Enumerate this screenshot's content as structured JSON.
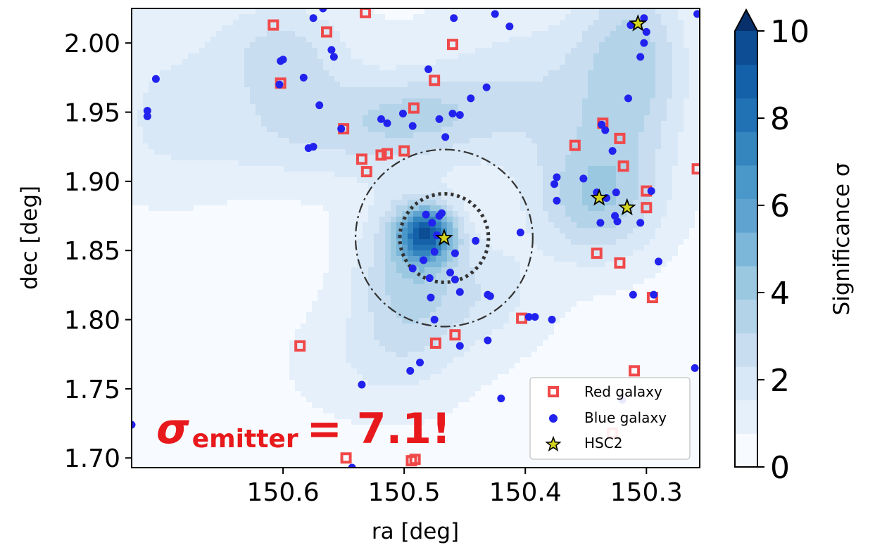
{
  "chart_data": {
    "type": "scatter",
    "xlabel": "ra [deg]",
    "ylabel": "dec [deg]",
    "xlim": [
      150.725,
      150.256
    ],
    "ylim": [
      1.693,
      2.025
    ],
    "x_inverted": true,
    "xticks": [
      150.6,
      150.5,
      150.4,
      150.3
    ],
    "xtick_labels": [
      "150.6",
      "150.5",
      "150.4",
      "150.3"
    ],
    "yticks": [
      1.7,
      1.75,
      1.8,
      1.85,
      1.9,
      1.95,
      2.0
    ],
    "ytick_labels": [
      "1.70",
      "1.75",
      "1.80",
      "1.85",
      "1.90",
      "1.95",
      "2.00"
    ],
    "colorbar": {
      "label": "Significance σ",
      "range": [
        0,
        10
      ],
      "ticks": [
        0,
        2,
        4,
        6,
        8,
        10
      ],
      "tick_labels": [
        "0",
        "2",
        "4",
        "6",
        "8",
        "10"
      ],
      "extend": "max",
      "colors": [
        "#f7fbff",
        "#e6f0fb",
        "#d9e8f6",
        "#c8ddf0",
        "#b3d3e9",
        "#9ac8e0",
        "#7cb7da",
        "#5fa3d0",
        "#4a98c9",
        "#3585bf",
        "#2171b5",
        "#1561a9",
        "#0c4d94",
        "#08306b"
      ]
    },
    "contour_peaks": [
      {
        "ra": 150.482,
        "dec": 1.862,
        "sigma": 7.1,
        "sx": 0.016,
        "sy": 0.014
      },
      {
        "ra": 150.5,
        "dec": 1.835,
        "sigma": 2.5,
        "sx": 0.03,
        "sy": 0.04
      },
      {
        "ra": 150.44,
        "dec": 1.82,
        "sigma": 1.5,
        "sx": 0.04,
        "sy": 0.03
      },
      {
        "ra": 150.49,
        "dec": 1.95,
        "sigma": 1.8,
        "sx": 0.05,
        "sy": 0.02
      },
      {
        "ra": 150.57,
        "dec": 1.93,
        "sigma": 1.5,
        "sx": 0.08,
        "sy": 0.025
      },
      {
        "ra": 150.6,
        "dec": 1.99,
        "sigma": 2.2,
        "sx": 0.04,
        "sy": 0.03
      },
      {
        "ra": 150.34,
        "dec": 1.885,
        "sigma": 2.8,
        "sx": 0.035,
        "sy": 0.03
      },
      {
        "ra": 150.31,
        "dec": 1.99,
        "sigma": 2.5,
        "sx": 0.03,
        "sy": 0.05
      },
      {
        "ra": 150.35,
        "dec": 1.945,
        "sigma": 1.2,
        "sx": 0.05,
        "sy": 0.05
      },
      {
        "ra": 150.42,
        "dec": 1.975,
        "sigma": 1.0,
        "sx": 0.06,
        "sy": 0.04
      },
      {
        "ra": 150.52,
        "dec": 1.77,
        "sigma": 1.0,
        "sx": 0.05,
        "sy": 0.03
      },
      {
        "ra": 150.7,
        "dec": 1.96,
        "sigma": 1.0,
        "sx": 0.04,
        "sy": 0.05
      }
    ],
    "circles": [
      {
        "ra": 150.467,
        "dec": 1.859,
        "radius_deg": 0.064,
        "style": "dashdot"
      },
      {
        "ra": 150.467,
        "dec": 1.859,
        "radius_deg": 0.032,
        "style": "dotted"
      }
    ],
    "series": [
      {
        "name": "Red galaxy",
        "marker": "square",
        "color": "#f0494a",
        "points": [
          [
            150.564,
            2.008
          ],
          [
            150.532,
            2.022
          ],
          [
            150.531,
            1.907
          ],
          [
            150.586,
            1.781
          ],
          [
            150.608,
            2.013
          ],
          [
            150.602,
            1.971
          ],
          [
            150.55,
            1.938
          ],
          [
            150.535,
            1.916
          ],
          [
            150.519,
            1.919
          ],
          [
            150.514,
            1.92
          ],
          [
            150.5,
            1.922
          ],
          [
            150.492,
            1.953
          ],
          [
            150.475,
            1.973
          ],
          [
            150.46,
            1.999
          ],
          [
            150.548,
            1.7
          ],
          [
            150.494,
            1.698
          ],
          [
            150.491,
            1.699
          ],
          [
            150.474,
            1.783
          ],
          [
            150.458,
            1.789
          ],
          [
            150.403,
            1.801
          ],
          [
            150.359,
            1.926
          ],
          [
            150.336,
            1.942
          ],
          [
            150.322,
            1.931
          ],
          [
            150.319,
            1.911
          ],
          [
            150.341,
            1.848
          ],
          [
            150.322,
            1.841
          ],
          [
            150.3,
            1.893
          ],
          [
            150.3,
            1.881
          ],
          [
            150.295,
            1.816
          ],
          [
            150.31,
            1.763
          ],
          [
            150.328,
            1.718
          ],
          [
            150.258,
            1.909
          ]
        ]
      },
      {
        "name": "Blue galaxy",
        "marker": "circle",
        "color": "#2222ee",
        "points": [
          [
            150.575,
            2.018
          ],
          [
            150.567,
            2.025
          ],
          [
            150.6,
            1.988
          ],
          [
            150.602,
            1.987
          ],
          [
            150.603,
            1.97
          ],
          [
            150.56,
            1.995
          ],
          [
            150.558,
            1.99
          ],
          [
            150.57,
            1.955
          ],
          [
            150.583,
            1.975
          ],
          [
            150.579,
            1.924
          ],
          [
            150.575,
            1.925
          ],
          [
            150.552,
            1.938
          ],
          [
            150.519,
            1.945
          ],
          [
            150.514,
            1.942
          ],
          [
            150.501,
            1.949
          ],
          [
            150.493,
            1.94
          ],
          [
            150.48,
            1.981
          ],
          [
            150.471,
            1.945
          ],
          [
            150.466,
            1.932
          ],
          [
            150.46,
            1.949
          ],
          [
            150.454,
            1.948
          ],
          [
            150.445,
            1.96
          ],
          [
            150.432,
            1.968
          ],
          [
            150.425,
            2.021
          ],
          [
            150.413,
            2.012
          ],
          [
            150.459,
            2.018
          ],
          [
            150.712,
            1.951
          ],
          [
            150.712,
            1.947
          ],
          [
            150.705,
            1.974
          ],
          [
            150.482,
            1.876
          ],
          [
            150.477,
            1.87
          ],
          [
            150.471,
            1.875
          ],
          [
            150.469,
            1.877
          ],
          [
            150.473,
            1.861
          ],
          [
            150.475,
            1.849
          ],
          [
            150.458,
            1.848
          ],
          [
            150.484,
            1.843
          ],
          [
            150.493,
            1.837
          ],
          [
            150.479,
            1.83
          ],
          [
            150.462,
            1.834
          ],
          [
            150.458,
            1.829
          ],
          [
            150.454,
            1.82
          ],
          [
            150.478,
            1.816
          ],
          [
            150.475,
            1.8
          ],
          [
            150.487,
            1.769
          ],
          [
            150.454,
            1.781
          ],
          [
            150.441,
            1.857
          ],
          [
            150.429,
            1.817
          ],
          [
            150.431,
            1.818
          ],
          [
            150.431,
            1.785
          ],
          [
            150.42,
            1.743
          ],
          [
            150.495,
            1.763
          ],
          [
            150.535,
            1.753
          ],
          [
            150.543,
            1.693
          ],
          [
            150.725,
            1.724
          ],
          [
            150.404,
            1.863
          ],
          [
            150.392,
            1.802
          ],
          [
            150.397,
            1.802
          ],
          [
            150.378,
            1.8
          ],
          [
            150.376,
            1.898
          ],
          [
            150.374,
            1.903
          ],
          [
            150.374,
            1.886
          ],
          [
            150.352,
            1.902
          ],
          [
            150.337,
            1.941
          ],
          [
            150.334,
            1.937
          ],
          [
            150.328,
            1.922
          ],
          [
            150.341,
            1.892
          ],
          [
            150.333,
            1.888
          ],
          [
            150.326,
            1.875
          ],
          [
            150.325,
            1.892
          ],
          [
            150.315,
            1.96
          ],
          [
            150.313,
            2.013
          ],
          [
            150.305,
            1.99
          ],
          [
            150.302,
            2.0
          ],
          [
            150.302,
            2.018
          ],
          [
            150.3,
            2.008
          ],
          [
            150.296,
            1.893
          ],
          [
            150.305,
            1.87
          ],
          [
            150.294,
            1.818
          ],
          [
            150.29,
            1.842
          ],
          [
            150.258,
            2.021
          ],
          [
            150.26,
            1.765
          ],
          [
            150.32,
            1.742
          ],
          [
            150.324,
            1.871
          ],
          [
            150.338,
            1.87
          ],
          [
            150.311,
            1.818
          ]
        ]
      },
      {
        "name": "HSC2",
        "marker": "star",
        "color": "#d4d41e",
        "points": [
          [
            150.467,
            1.859
          ],
          [
            150.339,
            1.888
          ],
          [
            150.316,
            1.881
          ],
          [
            150.307,
            2.014
          ]
        ]
      }
    ],
    "legend": {
      "placement": "lower right",
      "entries": [
        "Red galaxy",
        "Blue galaxy",
        "HSC2"
      ]
    }
  },
  "annotation": {
    "sigma_symbol": "σ",
    "subscript": "emitter",
    "text": "= 7.1!"
  }
}
